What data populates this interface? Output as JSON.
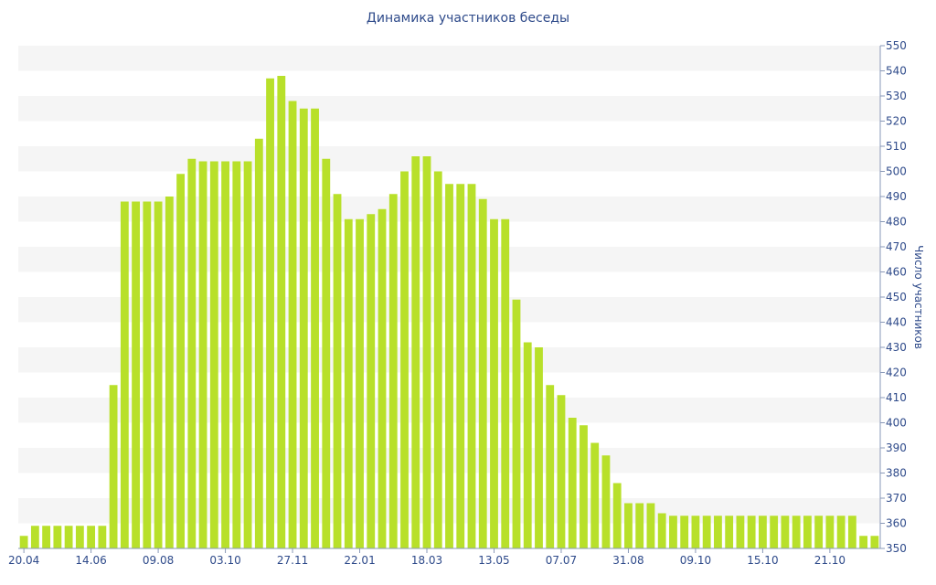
{
  "chart_data": {
    "type": "bar",
    "title": "Динамика участников беседы",
    "ylabel": "Число участников",
    "xlabel": "",
    "ylim": [
      350,
      550
    ],
    "y_ticks": [
      350,
      360,
      370,
      380,
      390,
      400,
      410,
      420,
      430,
      440,
      450,
      460,
      470,
      480,
      490,
      500,
      510,
      520,
      530,
      540,
      550
    ],
    "y_axis_position": "right",
    "grid": "horizontal alternating bands",
    "bar_color": "#b8e02a",
    "x_tick_labels": [
      "20.04",
      "14.06",
      "09.08",
      "03.10",
      "27.11",
      "22.01",
      "18.03",
      "13.05",
      "07.07",
      "31.08",
      "09.10",
      "15.10",
      "21.10"
    ],
    "x_tick_positions": [
      0,
      6,
      12,
      18,
      24,
      30,
      36,
      42,
      48,
      54,
      60,
      66,
      72
    ],
    "values": [
      355,
      359,
      359,
      359,
      359,
      359,
      359,
      359,
      415,
      488,
      488,
      488,
      488,
      490,
      499,
      505,
      504,
      504,
      504,
      504,
      504,
      513,
      537,
      538,
      528,
      525,
      525,
      505,
      491,
      481,
      481,
      483,
      485,
      491,
      500,
      506,
      506,
      500,
      495,
      495,
      495,
      489,
      481,
      481,
      449,
      432,
      430,
      415,
      411,
      402,
      399,
      392,
      387,
      376,
      368,
      368,
      368,
      364,
      363,
      363,
      363,
      363,
      363,
      363,
      363,
      363,
      363,
      363,
      363,
      363,
      363,
      363,
      363,
      363,
      363,
      355,
      355
    ]
  }
}
